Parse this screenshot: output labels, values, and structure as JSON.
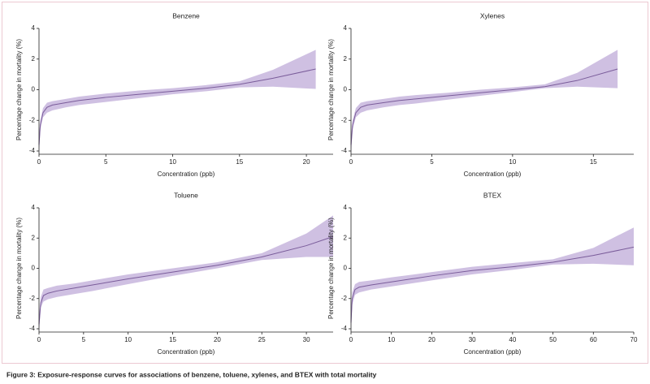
{
  "chart_data": [
    {
      "type": "line",
      "title": "Benzene",
      "x_label": "Concentration (ppb)",
      "y_label": "Percentage change in mortality (%)",
      "xlim": [
        0,
        22
      ],
      "xticks": [
        0,
        5,
        10,
        15,
        20
      ],
      "ylim": [
        -4,
        4
      ],
      "yticks": [
        -4,
        -2,
        0,
        2,
        4
      ],
      "grid": false,
      "line_color": "#7a5c9a",
      "band_color": "#cfc0e2",
      "x": [
        0,
        0.1,
        0.3,
        0.6,
        1,
        2,
        3,
        5,
        7.5,
        10,
        12.5,
        15,
        17.5,
        20.7
      ],
      "values": [
        -3.6,
        -2.3,
        -1.5,
        -1.15,
        -1.0,
        -0.85,
        -0.7,
        -0.5,
        -0.3,
        -0.1,
        0.1,
        0.35,
        0.75,
        1.35
      ],
      "lower": [
        -4.3,
        -2.6,
        -1.8,
        -1.5,
        -1.35,
        -1.15,
        -1.0,
        -0.8,
        -0.55,
        -0.3,
        -0.1,
        0.15,
        0.2,
        0.05
      ],
      "upper": [
        -3.0,
        -2.0,
        -1.2,
        -0.85,
        -0.75,
        -0.6,
        -0.45,
        -0.25,
        -0.05,
        0.1,
        0.3,
        0.55,
        1.3,
        2.6
      ]
    },
    {
      "type": "line",
      "title": "Xylenes",
      "x_label": "Concentration (ppb)",
      "y_label": "Percentage change in mortality (%)",
      "xlim": [
        0,
        17.5
      ],
      "xticks": [
        0,
        5,
        10,
        15
      ],
      "ylim": [
        -4,
        4
      ],
      "yticks": [
        -4,
        -2,
        0,
        2,
        4
      ],
      "grid": false,
      "line_color": "#7a5c9a",
      "band_color": "#cfc0e2",
      "x": [
        0,
        0.1,
        0.3,
        0.6,
        1,
        2,
        3,
        4,
        6,
        8,
        10,
        12,
        14,
        16.5
      ],
      "values": [
        -3.6,
        -2.3,
        -1.5,
        -1.15,
        -1.0,
        -0.85,
        -0.7,
        -0.6,
        -0.4,
        -0.2,
        0,
        0.2,
        0.6,
        1.35
      ],
      "lower": [
        -4.3,
        -2.6,
        -1.8,
        -1.5,
        -1.35,
        -1.15,
        -1.0,
        -0.9,
        -0.65,
        -0.4,
        -0.15,
        0.1,
        0.2,
        0.1
      ],
      "upper": [
        -3.0,
        -2.0,
        -1.2,
        -0.85,
        -0.75,
        -0.6,
        -0.45,
        -0.35,
        -0.2,
        0,
        0.15,
        0.35,
        1.1,
        2.6
      ]
    },
    {
      "type": "line",
      "title": "Toluene",
      "x_label": "Concentration (ppb)",
      "y_label": "Percentage change in mortality (%)",
      "xlim": [
        0,
        33
      ],
      "xticks": [
        0,
        5,
        10,
        15,
        20,
        25,
        30
      ],
      "ylim": [
        -4,
        4
      ],
      "yticks": [
        -4,
        -2,
        0,
        2,
        4
      ],
      "grid": false,
      "line_color": "#7a5c9a",
      "band_color": "#cfc0e2",
      "x": [
        0,
        0.2,
        0.5,
        1,
        2,
        4,
        6,
        10,
        15,
        20,
        25,
        30,
        33
      ],
      "values": [
        -3.7,
        -2.3,
        -1.8,
        -1.65,
        -1.5,
        -1.3,
        -1.1,
        -0.7,
        -0.25,
        0.2,
        0.75,
        1.5,
        2.1
      ],
      "lower": [
        -4.3,
        -2.6,
        -2.2,
        -2.05,
        -1.9,
        -1.7,
        -1.5,
        -1.05,
        -0.5,
        0,
        0.55,
        0.75,
        0.75
      ],
      "upper": [
        -3.1,
        -1.9,
        -1.4,
        -1.3,
        -1.15,
        -1.0,
        -0.8,
        -0.4,
        0,
        0.4,
        1.0,
        2.3,
        3.5
      ]
    },
    {
      "type": "line",
      "title": "BTEX",
      "x_label": "Concentration (ppb)",
      "y_label": "Percentage change in mortality (%)",
      "xlim": [
        0,
        70
      ],
      "xticks": [
        0,
        10,
        20,
        30,
        40,
        50,
        60,
        70
      ],
      "ylim": [
        -4,
        4
      ],
      "yticks": [
        -4,
        -2,
        0,
        2,
        4
      ],
      "grid": false,
      "line_color": "#7a5c9a",
      "band_color": "#cfc0e2",
      "x": [
        0,
        0.3,
        1,
        2,
        5,
        10,
        20,
        30,
        40,
        50,
        60,
        70
      ],
      "values": [
        -3.6,
        -2.0,
        -1.4,
        -1.25,
        -1.1,
        -0.9,
        -0.5,
        -0.15,
        0.1,
        0.4,
        0.85,
        1.4
      ],
      "lower": [
        -4.3,
        -2.4,
        -1.75,
        -1.6,
        -1.4,
        -1.2,
        -0.8,
        -0.4,
        -0.1,
        0.25,
        0.3,
        0.2
      ],
      "upper": [
        -3.0,
        -1.6,
        -1.05,
        -0.9,
        -0.8,
        -0.6,
        -0.25,
        0.1,
        0.35,
        0.6,
        1.35,
        2.7
      ]
    }
  ],
  "caption": "Figure 3: Exposure-response curves for associations of benzene, toluene, xylenes, and BTEX with total mortality"
}
